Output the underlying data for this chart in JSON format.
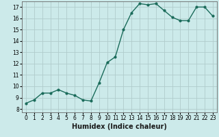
{
  "x": [
    0,
    1,
    2,
    3,
    4,
    5,
    6,
    7,
    8,
    9,
    10,
    11,
    12,
    13,
    14,
    15,
    16,
    17,
    18,
    19,
    20,
    21,
    22,
    23
  ],
  "y": [
    8.5,
    8.8,
    9.4,
    9.4,
    9.7,
    9.4,
    9.2,
    8.8,
    8.7,
    10.3,
    12.1,
    12.6,
    15.0,
    16.5,
    17.3,
    17.2,
    17.3,
    16.7,
    16.1,
    15.8,
    15.8,
    17.0,
    17.0,
    16.2
  ],
  "line_color": "#1a6b5a",
  "marker": "o",
  "marker_size": 2.0,
  "line_width": 1.0,
  "background_color": "#cceaea",
  "grid_color": "#b0cccc",
  "xlabel": "Humidex (Indice chaleur)",
  "xlabel_fontsize": 7,
  "ytick_min": 8,
  "ytick_max": 17,
  "ytick_step": 1,
  "xtick_labels": [
    "0",
    "1",
    "2",
    "3",
    "4",
    "5",
    "6",
    "7",
    "8",
    "9",
    "10",
    "11",
    "12",
    "13",
    "14",
    "15",
    "16",
    "17",
    "18",
    "19",
    "20",
    "21",
    "22",
    "23"
  ],
  "tick_fontsize": 5.5,
  "xlim_min": -0.5,
  "xlim_max": 23.5,
  "ylim_min": 7.7,
  "ylim_max": 17.5
}
